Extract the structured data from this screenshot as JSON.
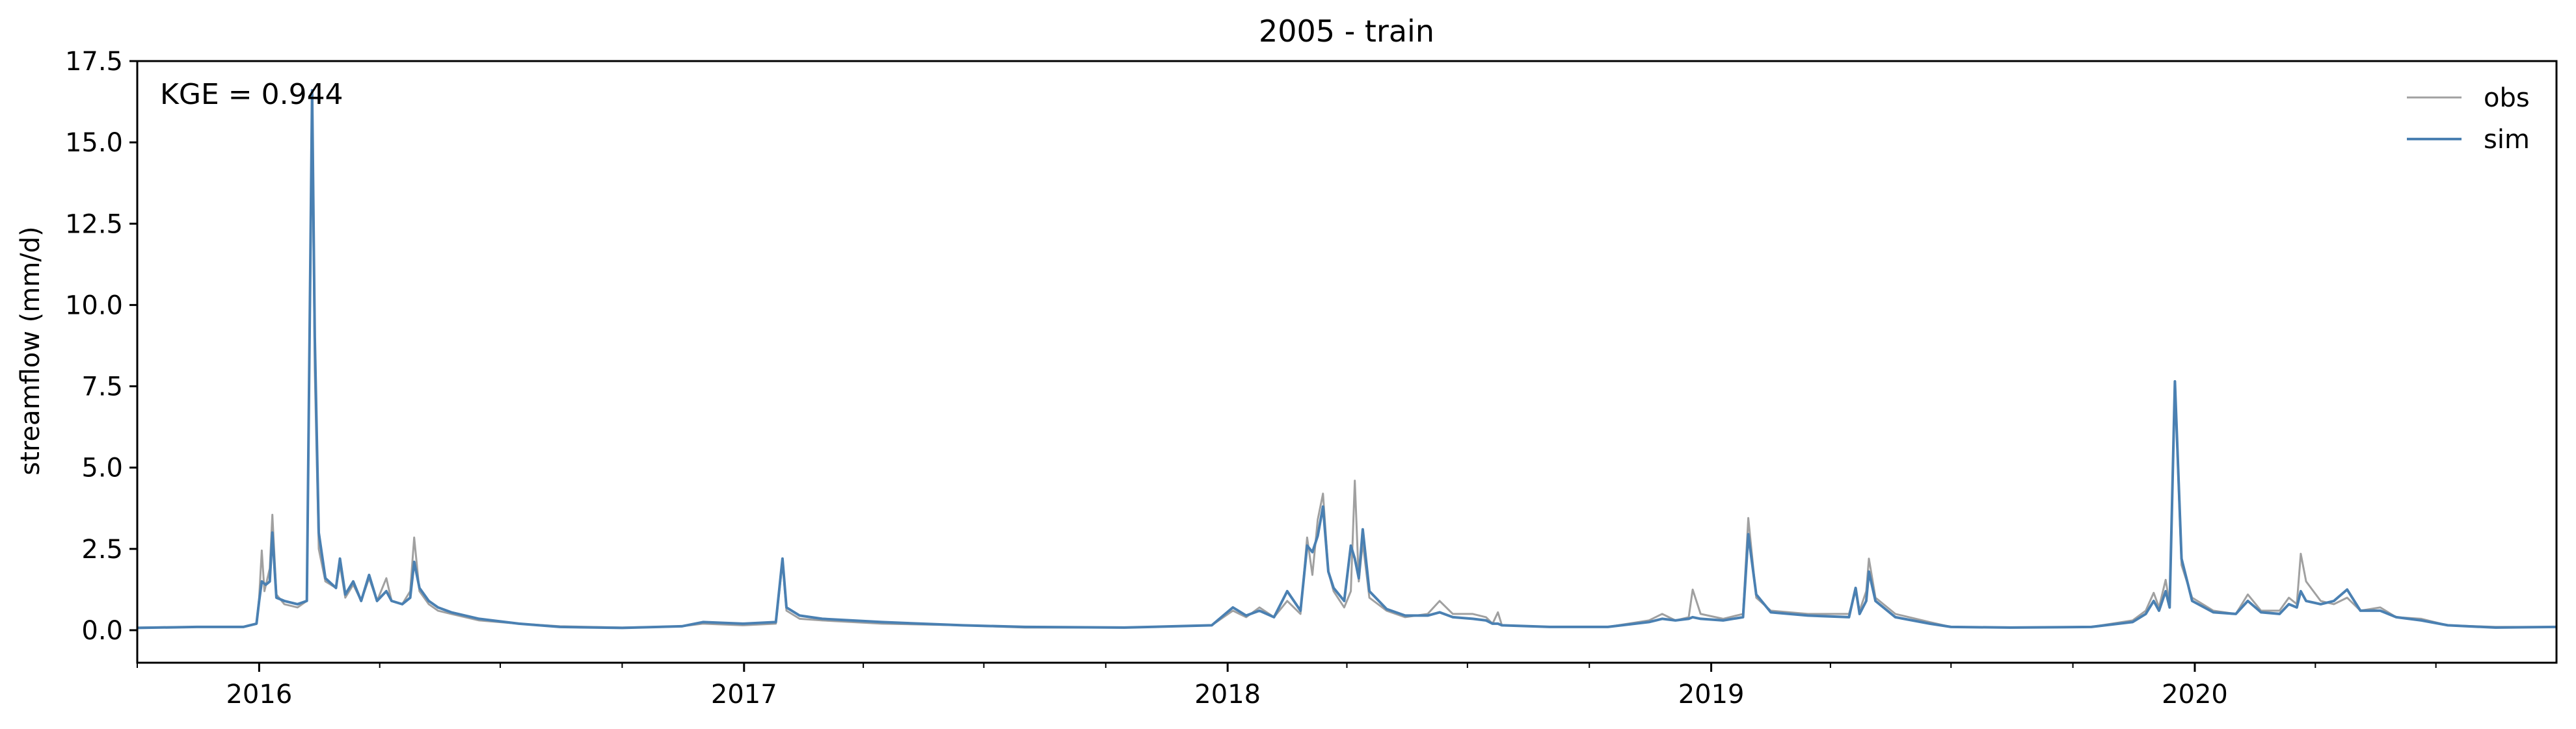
{
  "chart_data": {
    "type": "line",
    "title": "2005 - train",
    "xlabel": "",
    "ylabel": "streamflow (mm/d)",
    "annotation": "KGE = 0.944",
    "x_range": [
      "2015-10-01",
      "2020-09-30"
    ],
    "ylim": [
      -1.0,
      17.5
    ],
    "y_ticks": [
      0.0,
      2.5,
      5.0,
      7.5,
      10.0,
      12.5,
      15.0,
      17.5
    ],
    "y_tick_labels": [
      "0.0",
      "2.5",
      "5.0",
      "7.5",
      "10.0",
      "12.5",
      "15.0",
      "17.5"
    ],
    "x_major_ticks": [
      "2016-01-01",
      "2017-01-01",
      "2018-01-01",
      "2019-01-01",
      "2020-01-01"
    ],
    "x_tick_labels": [
      "2016",
      "2017",
      "2018",
      "2019",
      "2020"
    ],
    "x_minor_tick_interval": "quarter",
    "grid": false,
    "legend_position": "top-right",
    "series": [
      {
        "name": "obs",
        "color": "#a0a0a0",
        "points": [
          [
            "2015-10-01",
            0.08
          ],
          [
            "2015-11-15",
            0.1
          ],
          [
            "2015-12-20",
            0.1
          ],
          [
            "2015-12-30",
            0.2
          ],
          [
            "2016-01-01",
            1.0
          ],
          [
            "2016-01-03",
            2.45
          ],
          [
            "2016-01-05",
            1.2
          ],
          [
            "2016-01-09",
            1.9
          ],
          [
            "2016-01-11",
            3.55
          ],
          [
            "2016-01-14",
            1.1
          ],
          [
            "2016-01-20",
            0.8
          ],
          [
            "2016-01-30",
            0.7
          ],
          [
            "2016-02-06",
            0.9
          ],
          [
            "2016-02-10",
            16.0
          ],
          [
            "2016-02-12",
            8.0
          ],
          [
            "2016-02-15",
            2.5
          ],
          [
            "2016-02-20",
            1.5
          ],
          [
            "2016-02-28",
            1.3
          ],
          [
            "2016-03-02",
            2.0
          ],
          [
            "2016-03-06",
            1.0
          ],
          [
            "2016-03-12",
            1.4
          ],
          [
            "2016-03-18",
            0.9
          ],
          [
            "2016-03-24",
            1.6
          ],
          [
            "2016-03-30",
            0.9
          ],
          [
            "2016-04-06",
            1.6
          ],
          [
            "2016-04-10",
            0.9
          ],
          [
            "2016-04-18",
            0.8
          ],
          [
            "2016-04-24",
            1.2
          ],
          [
            "2016-04-27",
            2.85
          ],
          [
            "2016-05-01",
            1.2
          ],
          [
            "2016-05-08",
            0.8
          ],
          [
            "2016-05-15",
            0.6
          ],
          [
            "2016-05-25",
            0.5
          ],
          [
            "2016-06-15",
            0.3
          ],
          [
            "2016-07-15",
            0.2
          ],
          [
            "2016-08-15",
            0.12
          ],
          [
            "2016-10-01",
            0.08
          ],
          [
            "2016-11-15",
            0.12
          ],
          [
            "2016-12-01",
            0.2
          ],
          [
            "2016-12-31",
            0.15
          ],
          [
            "2017-01-25",
            0.2
          ],
          [
            "2017-01-30",
            2.1
          ],
          [
            "2017-02-02",
            0.6
          ],
          [
            "2017-02-12",
            0.35
          ],
          [
            "2017-03-01",
            0.3
          ],
          [
            "2017-04-15",
            0.2
          ],
          [
            "2017-06-15",
            0.15
          ],
          [
            "2017-08-01",
            0.08
          ],
          [
            "2017-10-15",
            0.08
          ],
          [
            "2017-12-20",
            0.15
          ],
          [
            "2018-01-05",
            0.6
          ],
          [
            "2018-01-15",
            0.4
          ],
          [
            "2018-01-25",
            0.7
          ],
          [
            "2018-02-05",
            0.4
          ],
          [
            "2018-02-15",
            0.9
          ],
          [
            "2018-02-25",
            0.5
          ],
          [
            "2018-03-02",
            2.85
          ],
          [
            "2018-03-06",
            1.7
          ],
          [
            "2018-03-10",
            3.4
          ],
          [
            "2018-03-14",
            4.2
          ],
          [
            "2018-03-18",
            1.8
          ],
          [
            "2018-03-22",
            1.2
          ],
          [
            "2018-03-30",
            0.7
          ],
          [
            "2018-04-04",
            1.2
          ],
          [
            "2018-04-07",
            4.6
          ],
          [
            "2018-04-10",
            1.5
          ],
          [
            "2018-04-13",
            2.7
          ],
          [
            "2018-04-18",
            1.0
          ],
          [
            "2018-05-01",
            0.6
          ],
          [
            "2018-05-15",
            0.4
          ],
          [
            "2018-06-01",
            0.5
          ],
          [
            "2018-06-10",
            0.9
          ],
          [
            "2018-06-20",
            0.5
          ],
          [
            "2018-07-05",
            0.5
          ],
          [
            "2018-07-15",
            0.4
          ],
          [
            "2018-07-20",
            0.2
          ],
          [
            "2018-07-24",
            0.55
          ],
          [
            "2018-07-27",
            0.15
          ],
          [
            "2018-09-01",
            0.1
          ],
          [
            "2018-10-15",
            0.1
          ],
          [
            "2018-11-15",
            0.3
          ],
          [
            "2018-11-25",
            0.5
          ],
          [
            "2018-12-05",
            0.3
          ],
          [
            "2018-12-15",
            0.4
          ],
          [
            "2018-12-18",
            1.25
          ],
          [
            "2018-12-24",
            0.5
          ],
          [
            "2019-01-10",
            0.35
          ],
          [
            "2019-01-25",
            0.5
          ],
          [
            "2019-01-29",
            3.45
          ],
          [
            "2019-02-04",
            1.0
          ],
          [
            "2019-02-15",
            0.6
          ],
          [
            "2019-03-15",
            0.5
          ],
          [
            "2019-04-15",
            0.5
          ],
          [
            "2019-04-20",
            1.2
          ],
          [
            "2019-04-23",
            0.6
          ],
          [
            "2019-04-28",
            1.2
          ],
          [
            "2019-04-30",
            2.2
          ],
          [
            "2019-05-05",
            1.0
          ],
          [
            "2019-05-20",
            0.5
          ],
          [
            "2019-06-15",
            0.25
          ],
          [
            "2019-07-01",
            0.1
          ],
          [
            "2019-08-15",
            0.08
          ],
          [
            "2019-10-15",
            0.1
          ],
          [
            "2019-11-15",
            0.3
          ],
          [
            "2019-11-25",
            0.6
          ],
          [
            "2019-12-01",
            1.15
          ],
          [
            "2019-12-05",
            0.7
          ],
          [
            "2019-12-10",
            1.55
          ],
          [
            "2019-12-13",
            0.8
          ],
          [
            "2019-12-17",
            7.5
          ],
          [
            "2019-12-22",
            2.0
          ],
          [
            "2019-12-30",
            1.0
          ],
          [
            "2020-01-15",
            0.6
          ],
          [
            "2020-02-01",
            0.5
          ],
          [
            "2020-02-10",
            1.1
          ],
          [
            "2020-02-20",
            0.6
          ],
          [
            "2020-03-05",
            0.6
          ],
          [
            "2020-03-12",
            1.0
          ],
          [
            "2020-03-18",
            0.8
          ],
          [
            "2020-03-21",
            2.35
          ],
          [
            "2020-03-25",
            1.5
          ],
          [
            "2020-04-05",
            0.9
          ],
          [
            "2020-04-15",
            0.8
          ],
          [
            "2020-04-25",
            1.0
          ],
          [
            "2020-05-05",
            0.6
          ],
          [
            "2020-05-20",
            0.7
          ],
          [
            "2020-06-01",
            0.4
          ],
          [
            "2020-06-20",
            0.35
          ],
          [
            "2020-07-10",
            0.15
          ],
          [
            "2020-08-15",
            0.1
          ],
          [
            "2020-09-30",
            0.1
          ]
        ]
      },
      {
        "name": "sim",
        "color": "#4a80b2",
        "points": [
          [
            "2015-10-01",
            0.07
          ],
          [
            "2015-11-15",
            0.1
          ],
          [
            "2015-12-20",
            0.1
          ],
          [
            "2015-12-30",
            0.2
          ],
          [
            "2016-01-01",
            0.9
          ],
          [
            "2016-01-03",
            1.5
          ],
          [
            "2016-01-06",
            1.4
          ],
          [
            "2016-01-09",
            1.5
          ],
          [
            "2016-01-11",
            3.0
          ],
          [
            "2016-01-14",
            1.0
          ],
          [
            "2016-01-20",
            0.9
          ],
          [
            "2016-01-30",
            0.8
          ],
          [
            "2016-02-06",
            0.9
          ],
          [
            "2016-02-10",
            16.6
          ],
          [
            "2016-02-12",
            9.0
          ],
          [
            "2016-02-15",
            3.0
          ],
          [
            "2016-02-20",
            1.6
          ],
          [
            "2016-02-28",
            1.3
          ],
          [
            "2016-03-02",
            2.2
          ],
          [
            "2016-03-06",
            1.1
          ],
          [
            "2016-03-12",
            1.5
          ],
          [
            "2016-03-18",
            0.9
          ],
          [
            "2016-03-24",
            1.7
          ],
          [
            "2016-03-30",
            0.9
          ],
          [
            "2016-04-06",
            1.2
          ],
          [
            "2016-04-10",
            0.9
          ],
          [
            "2016-04-18",
            0.8
          ],
          [
            "2016-04-24",
            1.0
          ],
          [
            "2016-04-27",
            2.1
          ],
          [
            "2016-05-01",
            1.3
          ],
          [
            "2016-05-08",
            0.9
          ],
          [
            "2016-05-15",
            0.7
          ],
          [
            "2016-05-25",
            0.55
          ],
          [
            "2016-06-15",
            0.35
          ],
          [
            "2016-07-15",
            0.2
          ],
          [
            "2016-08-15",
            0.1
          ],
          [
            "2016-10-01",
            0.07
          ],
          [
            "2016-11-15",
            0.12
          ],
          [
            "2016-12-01",
            0.25
          ],
          [
            "2016-12-31",
            0.2
          ],
          [
            "2017-01-25",
            0.25
          ],
          [
            "2017-01-30",
            2.2
          ],
          [
            "2017-02-02",
            0.7
          ],
          [
            "2017-02-12",
            0.45
          ],
          [
            "2017-03-01",
            0.35
          ],
          [
            "2017-04-15",
            0.25
          ],
          [
            "2017-06-15",
            0.15
          ],
          [
            "2017-08-01",
            0.1
          ],
          [
            "2017-10-15",
            0.08
          ],
          [
            "2017-12-20",
            0.15
          ],
          [
            "2018-01-05",
            0.7
          ],
          [
            "2018-01-15",
            0.45
          ],
          [
            "2018-01-25",
            0.6
          ],
          [
            "2018-02-05",
            0.4
          ],
          [
            "2018-02-15",
            1.2
          ],
          [
            "2018-02-25",
            0.6
          ],
          [
            "2018-03-02",
            2.6
          ],
          [
            "2018-03-06",
            2.4
          ],
          [
            "2018-03-10",
            2.9
          ],
          [
            "2018-03-14",
            3.8
          ],
          [
            "2018-03-18",
            1.8
          ],
          [
            "2018-03-22",
            1.3
          ],
          [
            "2018-03-30",
            0.9
          ],
          [
            "2018-04-04",
            2.6
          ],
          [
            "2018-04-07",
            2.2
          ],
          [
            "2018-04-10",
            1.6
          ],
          [
            "2018-04-13",
            3.1
          ],
          [
            "2018-04-18",
            1.2
          ],
          [
            "2018-05-01",
            0.65
          ],
          [
            "2018-05-15",
            0.45
          ],
          [
            "2018-06-01",
            0.45
          ],
          [
            "2018-06-10",
            0.55
          ],
          [
            "2018-06-20",
            0.4
          ],
          [
            "2018-07-05",
            0.35
          ],
          [
            "2018-07-15",
            0.3
          ],
          [
            "2018-07-20",
            0.2
          ],
          [
            "2018-07-24",
            0.2
          ],
          [
            "2018-07-27",
            0.15
          ],
          [
            "2018-09-01",
            0.1
          ],
          [
            "2018-10-15",
            0.1
          ],
          [
            "2018-11-15",
            0.25
          ],
          [
            "2018-11-25",
            0.35
          ],
          [
            "2018-12-05",
            0.3
          ],
          [
            "2018-12-15",
            0.35
          ],
          [
            "2018-12-18",
            0.4
          ],
          [
            "2018-12-24",
            0.35
          ],
          [
            "2019-01-10",
            0.3
          ],
          [
            "2019-01-25",
            0.4
          ],
          [
            "2019-01-29",
            2.95
          ],
          [
            "2019-02-04",
            1.1
          ],
          [
            "2019-02-15",
            0.55
          ],
          [
            "2019-03-15",
            0.45
          ],
          [
            "2019-04-15",
            0.4
          ],
          [
            "2019-04-20",
            1.3
          ],
          [
            "2019-04-23",
            0.5
          ],
          [
            "2019-04-28",
            0.9
          ],
          [
            "2019-04-30",
            1.8
          ],
          [
            "2019-05-05",
            0.9
          ],
          [
            "2019-05-20",
            0.4
          ],
          [
            "2019-06-15",
            0.2
          ],
          [
            "2019-07-01",
            0.1
          ],
          [
            "2019-08-15",
            0.08
          ],
          [
            "2019-10-15",
            0.1
          ],
          [
            "2019-11-15",
            0.25
          ],
          [
            "2019-11-25",
            0.5
          ],
          [
            "2019-12-01",
            0.9
          ],
          [
            "2019-12-05",
            0.6
          ],
          [
            "2019-12-10",
            1.2
          ],
          [
            "2019-12-13",
            0.7
          ],
          [
            "2019-12-17",
            7.65
          ],
          [
            "2019-12-22",
            2.2
          ],
          [
            "2019-12-30",
            0.9
          ],
          [
            "2020-01-15",
            0.55
          ],
          [
            "2020-02-01",
            0.5
          ],
          [
            "2020-02-10",
            0.9
          ],
          [
            "2020-02-20",
            0.55
          ],
          [
            "2020-03-05",
            0.5
          ],
          [
            "2020-03-12",
            0.8
          ],
          [
            "2020-03-18",
            0.7
          ],
          [
            "2020-03-21",
            1.2
          ],
          [
            "2020-03-25",
            0.9
          ],
          [
            "2020-04-05",
            0.8
          ],
          [
            "2020-04-15",
            0.9
          ],
          [
            "2020-04-25",
            1.25
          ],
          [
            "2020-05-05",
            0.6
          ],
          [
            "2020-05-20",
            0.6
          ],
          [
            "2020-06-01",
            0.4
          ],
          [
            "2020-06-20",
            0.3
          ],
          [
            "2020-07-10",
            0.15
          ],
          [
            "2020-08-15",
            0.08
          ],
          [
            "2020-09-30",
            0.1
          ]
        ]
      }
    ]
  }
}
